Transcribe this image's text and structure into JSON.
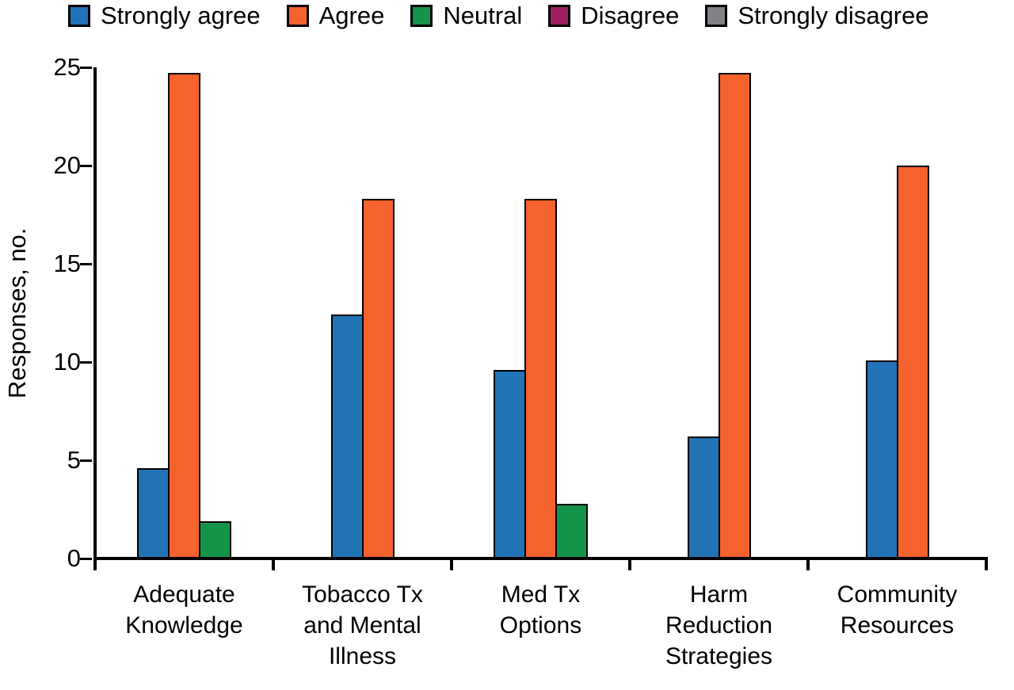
{
  "chart_data": {
    "type": "bar",
    "title": "",
    "ylabel": "Responses, no.",
    "xlabel": "",
    "ylim": [
      0,
      25
    ],
    "yticks": [
      0,
      5,
      10,
      15,
      20,
      25
    ],
    "grid": false,
    "legend_position": "top",
    "axis_color": "#000000",
    "categories": [
      "Adequate\nKnowledge",
      "Tobacco Tx\nand Mental\nIllness",
      "Med Tx\nOptions",
      "Harm\nReduction\nStrategies",
      "Community\nResources"
    ],
    "series": [
      {
        "name": "Strongly agree",
        "color": "#2273B6",
        "values": [
          4.6,
          12.4,
          9.6,
          6.2,
          10.1
        ]
      },
      {
        "name": "Agree",
        "color": "#F4622D",
        "values": [
          24.7,
          18.3,
          18.3,
          24.7,
          20.0
        ]
      },
      {
        "name": "Neutral",
        "color": "#14944A",
        "values": [
          1.9,
          0,
          2.8,
          0,
          0
        ]
      },
      {
        "name": "Disagree",
        "color": "#9E1F63",
        "values": [
          0,
          0,
          0,
          0,
          0
        ]
      },
      {
        "name": "Strongly disagree",
        "color": "#808285",
        "values": [
          0,
          0,
          0,
          0,
          0
        ]
      }
    ]
  }
}
